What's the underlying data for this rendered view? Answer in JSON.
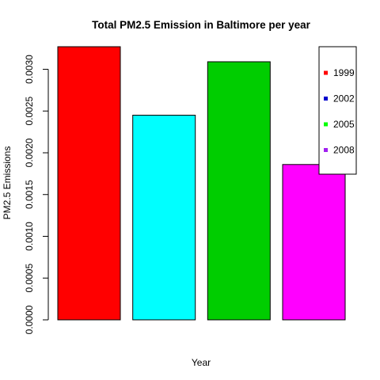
{
  "chart_data": {
    "type": "bar",
    "title": "Total PM2.5 Emission in Baltimore per year",
    "xlabel": "Year",
    "ylabel": "PM2.5 Emissions",
    "categories": [
      "1999",
      "2002",
      "2005",
      "2008"
    ],
    "values": [
      0.00327,
      0.00245,
      0.00309,
      0.00186
    ],
    "bar_colors": [
      "#FF0000",
      "#00FFFF",
      "#00CD00",
      "#FF00FF"
    ],
    "ylim": [
      0,
      0.00327
    ],
    "yticks": [
      "0.0000",
      "0.0005",
      "0.0010",
      "0.0015",
      "0.0020",
      "0.0025",
      "0.0030"
    ],
    "grid": false,
    "legend": {
      "position": "top-right",
      "entries": [
        {
          "label": "1999",
          "color": "#FF0000"
        },
        {
          "label": "2002",
          "color": "#0000CD"
        },
        {
          "label": "2005",
          "color": "#00FF00"
        },
        {
          "label": "2008",
          "color": "#A020F0"
        }
      ]
    }
  }
}
